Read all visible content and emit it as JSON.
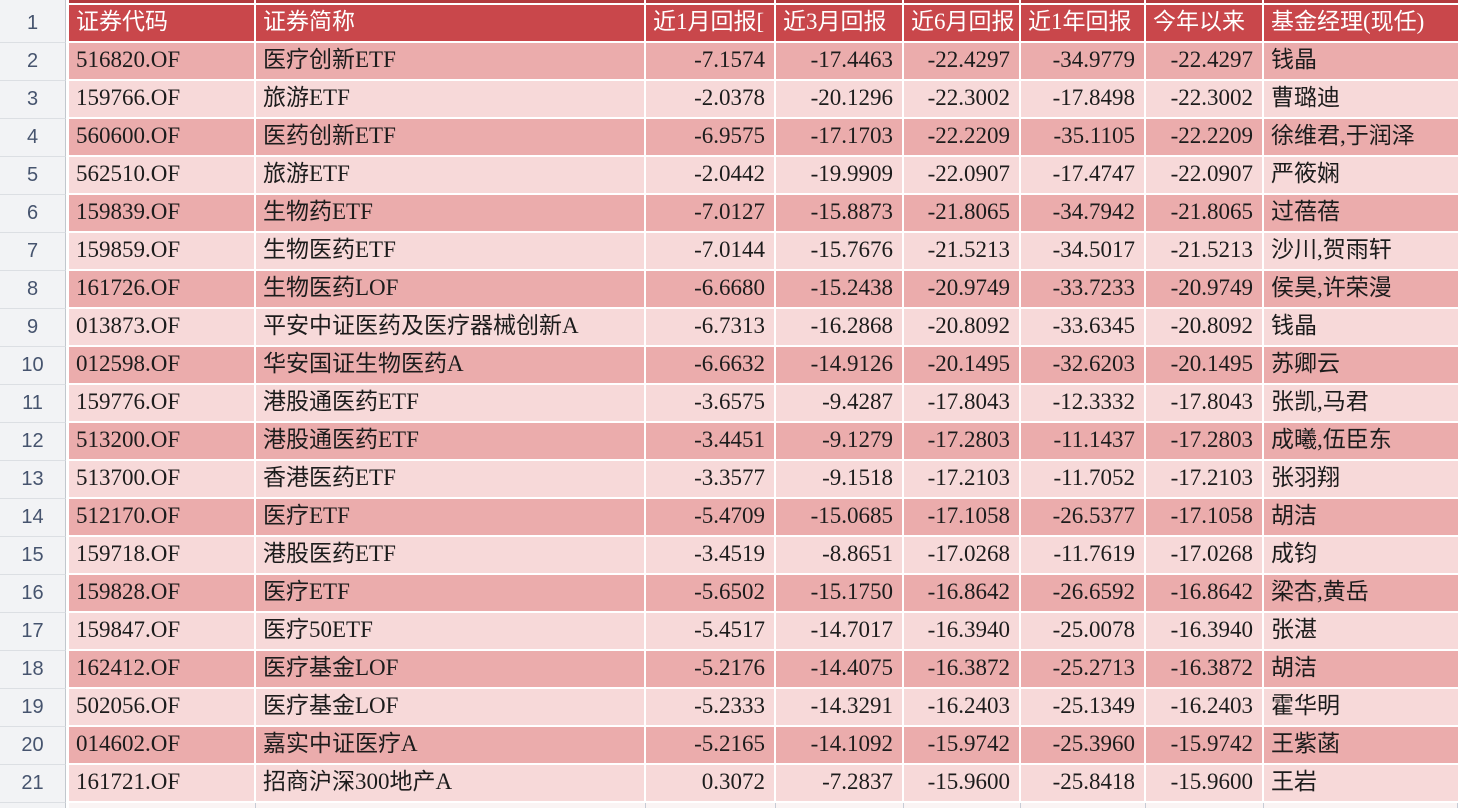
{
  "spreadsheet": {
    "header_row_num": "1",
    "columns": {
      "code": "证券代码",
      "name": "证券简称",
      "m1": "近1月回报[",
      "m3": "近3月回报",
      "m6": "近6月回报",
      "y1": "近1年回报",
      "ytd": "今年以来",
      "mgr": "基金经理(现任)"
    },
    "rows": [
      {
        "num": "2",
        "code": "516820.OF",
        "name": "医疗创新ETF",
        "m1": "-7.1574",
        "m3": "-17.4463",
        "m6": "-22.4297",
        "y1": "-34.9779",
        "ytd": "-22.4297",
        "mgr": "钱晶"
      },
      {
        "num": "3",
        "code": "159766.OF",
        "name": "旅游ETF",
        "m1": "-2.0378",
        "m3": "-20.1296",
        "m6": "-22.3002",
        "y1": "-17.8498",
        "ytd": "-22.3002",
        "mgr": "曹璐迪"
      },
      {
        "num": "4",
        "code": "560600.OF",
        "name": "医药创新ETF",
        "m1": "-6.9575",
        "m3": "-17.1703",
        "m6": "-22.2209",
        "y1": "-35.1105",
        "ytd": "-22.2209",
        "mgr": "徐维君,于润泽"
      },
      {
        "num": "5",
        "code": "562510.OF",
        "name": "旅游ETF",
        "m1": "-2.0442",
        "m3": "-19.9909",
        "m6": "-22.0907",
        "y1": "-17.4747",
        "ytd": "-22.0907",
        "mgr": "严筱娴"
      },
      {
        "num": "6",
        "code": "159839.OF",
        "name": "生物药ETF",
        "m1": "-7.0127",
        "m3": "-15.8873",
        "m6": "-21.8065",
        "y1": "-34.7942",
        "ytd": "-21.8065",
        "mgr": "过蓓蓓"
      },
      {
        "num": "7",
        "code": "159859.OF",
        "name": "生物医药ETF",
        "m1": "-7.0144",
        "m3": "-15.7676",
        "m6": "-21.5213",
        "y1": "-34.5017",
        "ytd": "-21.5213",
        "mgr": "沙川,贺雨轩"
      },
      {
        "num": "8",
        "code": "161726.OF",
        "name": "生物医药LOF",
        "m1": "-6.6680",
        "m3": "-15.2438",
        "m6": "-20.9749",
        "y1": "-33.7233",
        "ytd": "-20.9749",
        "mgr": "侯昊,许荣漫"
      },
      {
        "num": "9",
        "code": "013873.OF",
        "name": "平安中证医药及医疗器械创新A",
        "m1": "-6.7313",
        "m3": "-16.2868",
        "m6": "-20.8092",
        "y1": "-33.6345",
        "ytd": "-20.8092",
        "mgr": "钱晶"
      },
      {
        "num": "10",
        "code": "012598.OF",
        "name": "华安国证生物医药A",
        "m1": "-6.6632",
        "m3": "-14.9126",
        "m6": "-20.1495",
        "y1": "-32.6203",
        "ytd": "-20.1495",
        "mgr": "苏卿云"
      },
      {
        "num": "11",
        "code": "159776.OF",
        "name": "港股通医药ETF",
        "m1": "-3.6575",
        "m3": "-9.4287",
        "m6": "-17.8043",
        "y1": "-12.3332",
        "ytd": "-17.8043",
        "mgr": "张凯,马君"
      },
      {
        "num": "12",
        "code": "513200.OF",
        "name": "港股通医药ETF",
        "m1": "-3.4451",
        "m3": "-9.1279",
        "m6": "-17.2803",
        "y1": "-11.1437",
        "ytd": "-17.2803",
        "mgr": "成曦,伍臣东"
      },
      {
        "num": "13",
        "code": "513700.OF",
        "name": "香港医药ETF",
        "m1": "-3.3577",
        "m3": "-9.1518",
        "m6": "-17.2103",
        "y1": "-11.7052",
        "ytd": "-17.2103",
        "mgr": "张羽翔"
      },
      {
        "num": "14",
        "code": "512170.OF",
        "name": "医疗ETF",
        "m1": "-5.4709",
        "m3": "-15.0685",
        "m6": "-17.1058",
        "y1": "-26.5377",
        "ytd": "-17.1058",
        "mgr": "胡洁"
      },
      {
        "num": "15",
        "code": "159718.OF",
        "name": "港股医药ETF",
        "m1": "-3.4519",
        "m3": "-8.8651",
        "m6": "-17.0268",
        "y1": "-11.7619",
        "ytd": "-17.0268",
        "mgr": "成钧"
      },
      {
        "num": "16",
        "code": "159828.OF",
        "name": "医疗ETF",
        "m1": "-5.6502",
        "m3": "-15.1750",
        "m6": "-16.8642",
        "y1": "-26.6592",
        "ytd": "-16.8642",
        "mgr": "梁杏,黄岳"
      },
      {
        "num": "17",
        "code": "159847.OF",
        "name": "医疗50ETF",
        "m1": "-5.4517",
        "m3": "-14.7017",
        "m6": "-16.3940",
        "y1": "-25.0078",
        "ytd": "-16.3940",
        "mgr": "张湛"
      },
      {
        "num": "18",
        "code": "162412.OF",
        "name": "医疗基金LOF",
        "m1": "-5.2176",
        "m3": "-14.4075",
        "m6": "-16.3872",
        "y1": "-25.2713",
        "ytd": "-16.3872",
        "mgr": "胡洁"
      },
      {
        "num": "19",
        "code": "502056.OF",
        "name": "医疗基金LOF",
        "m1": "-5.2333",
        "m3": "-14.3291",
        "m6": "-16.2403",
        "y1": "-25.1349",
        "ytd": "-16.2403",
        "mgr": "霍华明"
      },
      {
        "num": "20",
        "code": "014602.OF",
        "name": "嘉实中证医疗A",
        "m1": "-5.2165",
        "m3": "-14.1092",
        "m6": "-15.9742",
        "y1": "-25.3960",
        "ytd": "-15.9742",
        "mgr": "王紫菡"
      },
      {
        "num": "21",
        "code": "161721.OF",
        "name": "招商沪深300地产A",
        "m1": "0.3072",
        "m3": "-7.2837",
        "m6": "-15.9600",
        "y1": "-25.8418",
        "ytd": "-15.9600",
        "mgr": "王岩"
      }
    ],
    "colors": {
      "header_bg": "#C9474B",
      "header_text": "#FFFFFF",
      "row_dark": "#EBACAC",
      "row_light": "#F7D9D9",
      "strip_top": "#B23A3E",
      "gutter_bg": "#F2F3F5",
      "gutter_text": "#46546E",
      "gridline": "#FFFFFF",
      "cell_text": "#1C1C1C"
    }
  }
}
